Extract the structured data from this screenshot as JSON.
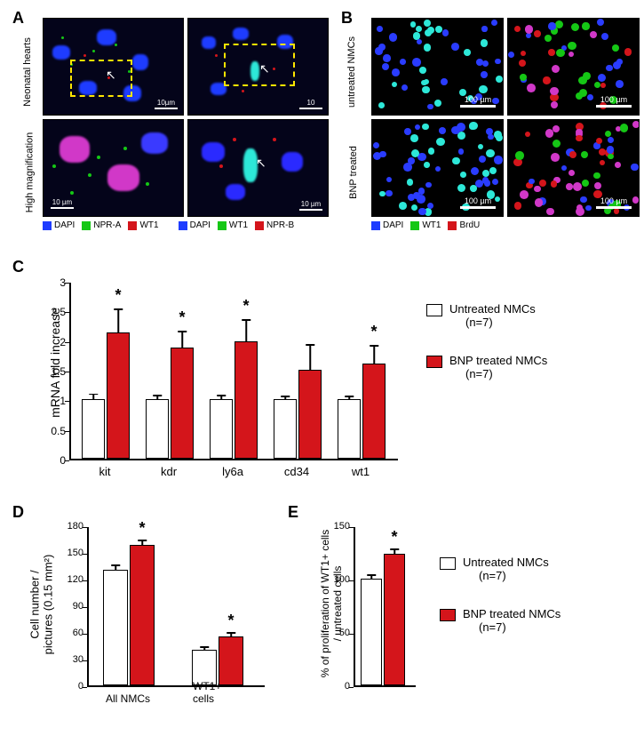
{
  "labels": {
    "A": "A",
    "B": "B",
    "C": "C",
    "D": "D",
    "E": "E"
  },
  "panelA": {
    "row1_label": "Neonatal hearts",
    "row2_label": "High magnification",
    "scale_small": "10µm",
    "scale_big": "10 µm",
    "legend1": [
      {
        "color": "#1e3cff",
        "text": "DAPI"
      },
      {
        "color": "#15c715",
        "text": "NPR-A"
      },
      {
        "color": "#d4151b",
        "text": "WT1"
      }
    ],
    "legend2": [
      {
        "color": "#1e3cff",
        "text": "DAPI"
      },
      {
        "color": "#15c715",
        "text": "WT1"
      },
      {
        "color": "#d4151b",
        "text": "NPR-B"
      }
    ]
  },
  "panelB": {
    "row1_label": "untreated NMCs",
    "row2_label": "BNP treated",
    "scale": "100 µm",
    "legend": [
      {
        "color": "#1e3cff",
        "text": "DAPI"
      },
      {
        "color": "#15c715",
        "text": "WT1"
      },
      {
        "color": "#d4151b",
        "text": "BrdU"
      }
    ]
  },
  "panelC": {
    "y_label": "mRNA fold increase",
    "ticks": [
      0,
      0.5,
      1,
      1.5,
      2,
      2.5,
      3
    ],
    "ymax": 3,
    "genes": [
      {
        "name": "kit",
        "untreated": 1.0,
        "ut_err": 0.1,
        "treated": 2.13,
        "tr_err": 0.4,
        "sig": true
      },
      {
        "name": "kdr",
        "untreated": 1.0,
        "ut_err": 0.08,
        "treated": 1.88,
        "tr_err": 0.28,
        "sig": true
      },
      {
        "name": "ly6a",
        "untreated": 1.0,
        "ut_err": 0.08,
        "treated": 1.98,
        "tr_err": 0.37,
        "sig": true
      },
      {
        "name": "cd34",
        "untreated": 1.0,
        "ut_err": 0.06,
        "treated": 1.5,
        "tr_err": 0.43,
        "sig": false
      },
      {
        "name": "wt1",
        "untreated": 1.0,
        "ut_err": 0.06,
        "treated": 1.6,
        "tr_err": 0.32,
        "sig": true
      }
    ],
    "legend_untreated": "Untreated NMCs",
    "legend_untreated_n": "(n=7)",
    "legend_treated": "BNP treated NMCs",
    "legend_treated_n": "(n=7)",
    "colors": {
      "untreated": "#ffffff",
      "treated": "#d4151b",
      "border": "#000000"
    }
  },
  "panelD": {
    "y_label1": "Cell number /",
    "y_label2": "pictures (0.15 mm²)",
    "ticks": [
      0,
      30,
      60,
      90,
      120,
      150,
      180
    ],
    "ymax": 180,
    "groups": [
      {
        "name": "All NMCs",
        "untreated": 130,
        "ut_err": 6,
        "treated": 158,
        "tr_err": 6,
        "sig": true
      },
      {
        "name": "WT1+ cells",
        "untreated": 40,
        "ut_err": 4,
        "treated": 55,
        "tr_err": 5,
        "sig": true
      }
    ]
  },
  "panelE": {
    "y_label1": "% of proliferation of WT1+ cells",
    "y_label2": "/ untreated cells",
    "ticks": [
      0,
      50,
      100,
      150
    ],
    "ymax": 150,
    "untreated": 100,
    "ut_err": 4,
    "treated": 123,
    "tr_err": 5,
    "sig": true,
    "legend_untreated": "Untreated NMCs",
    "legend_untreated_n": "(n=7)",
    "legend_treated": "BNP treated NMCs",
    "legend_treated_n": "(n=7)"
  }
}
